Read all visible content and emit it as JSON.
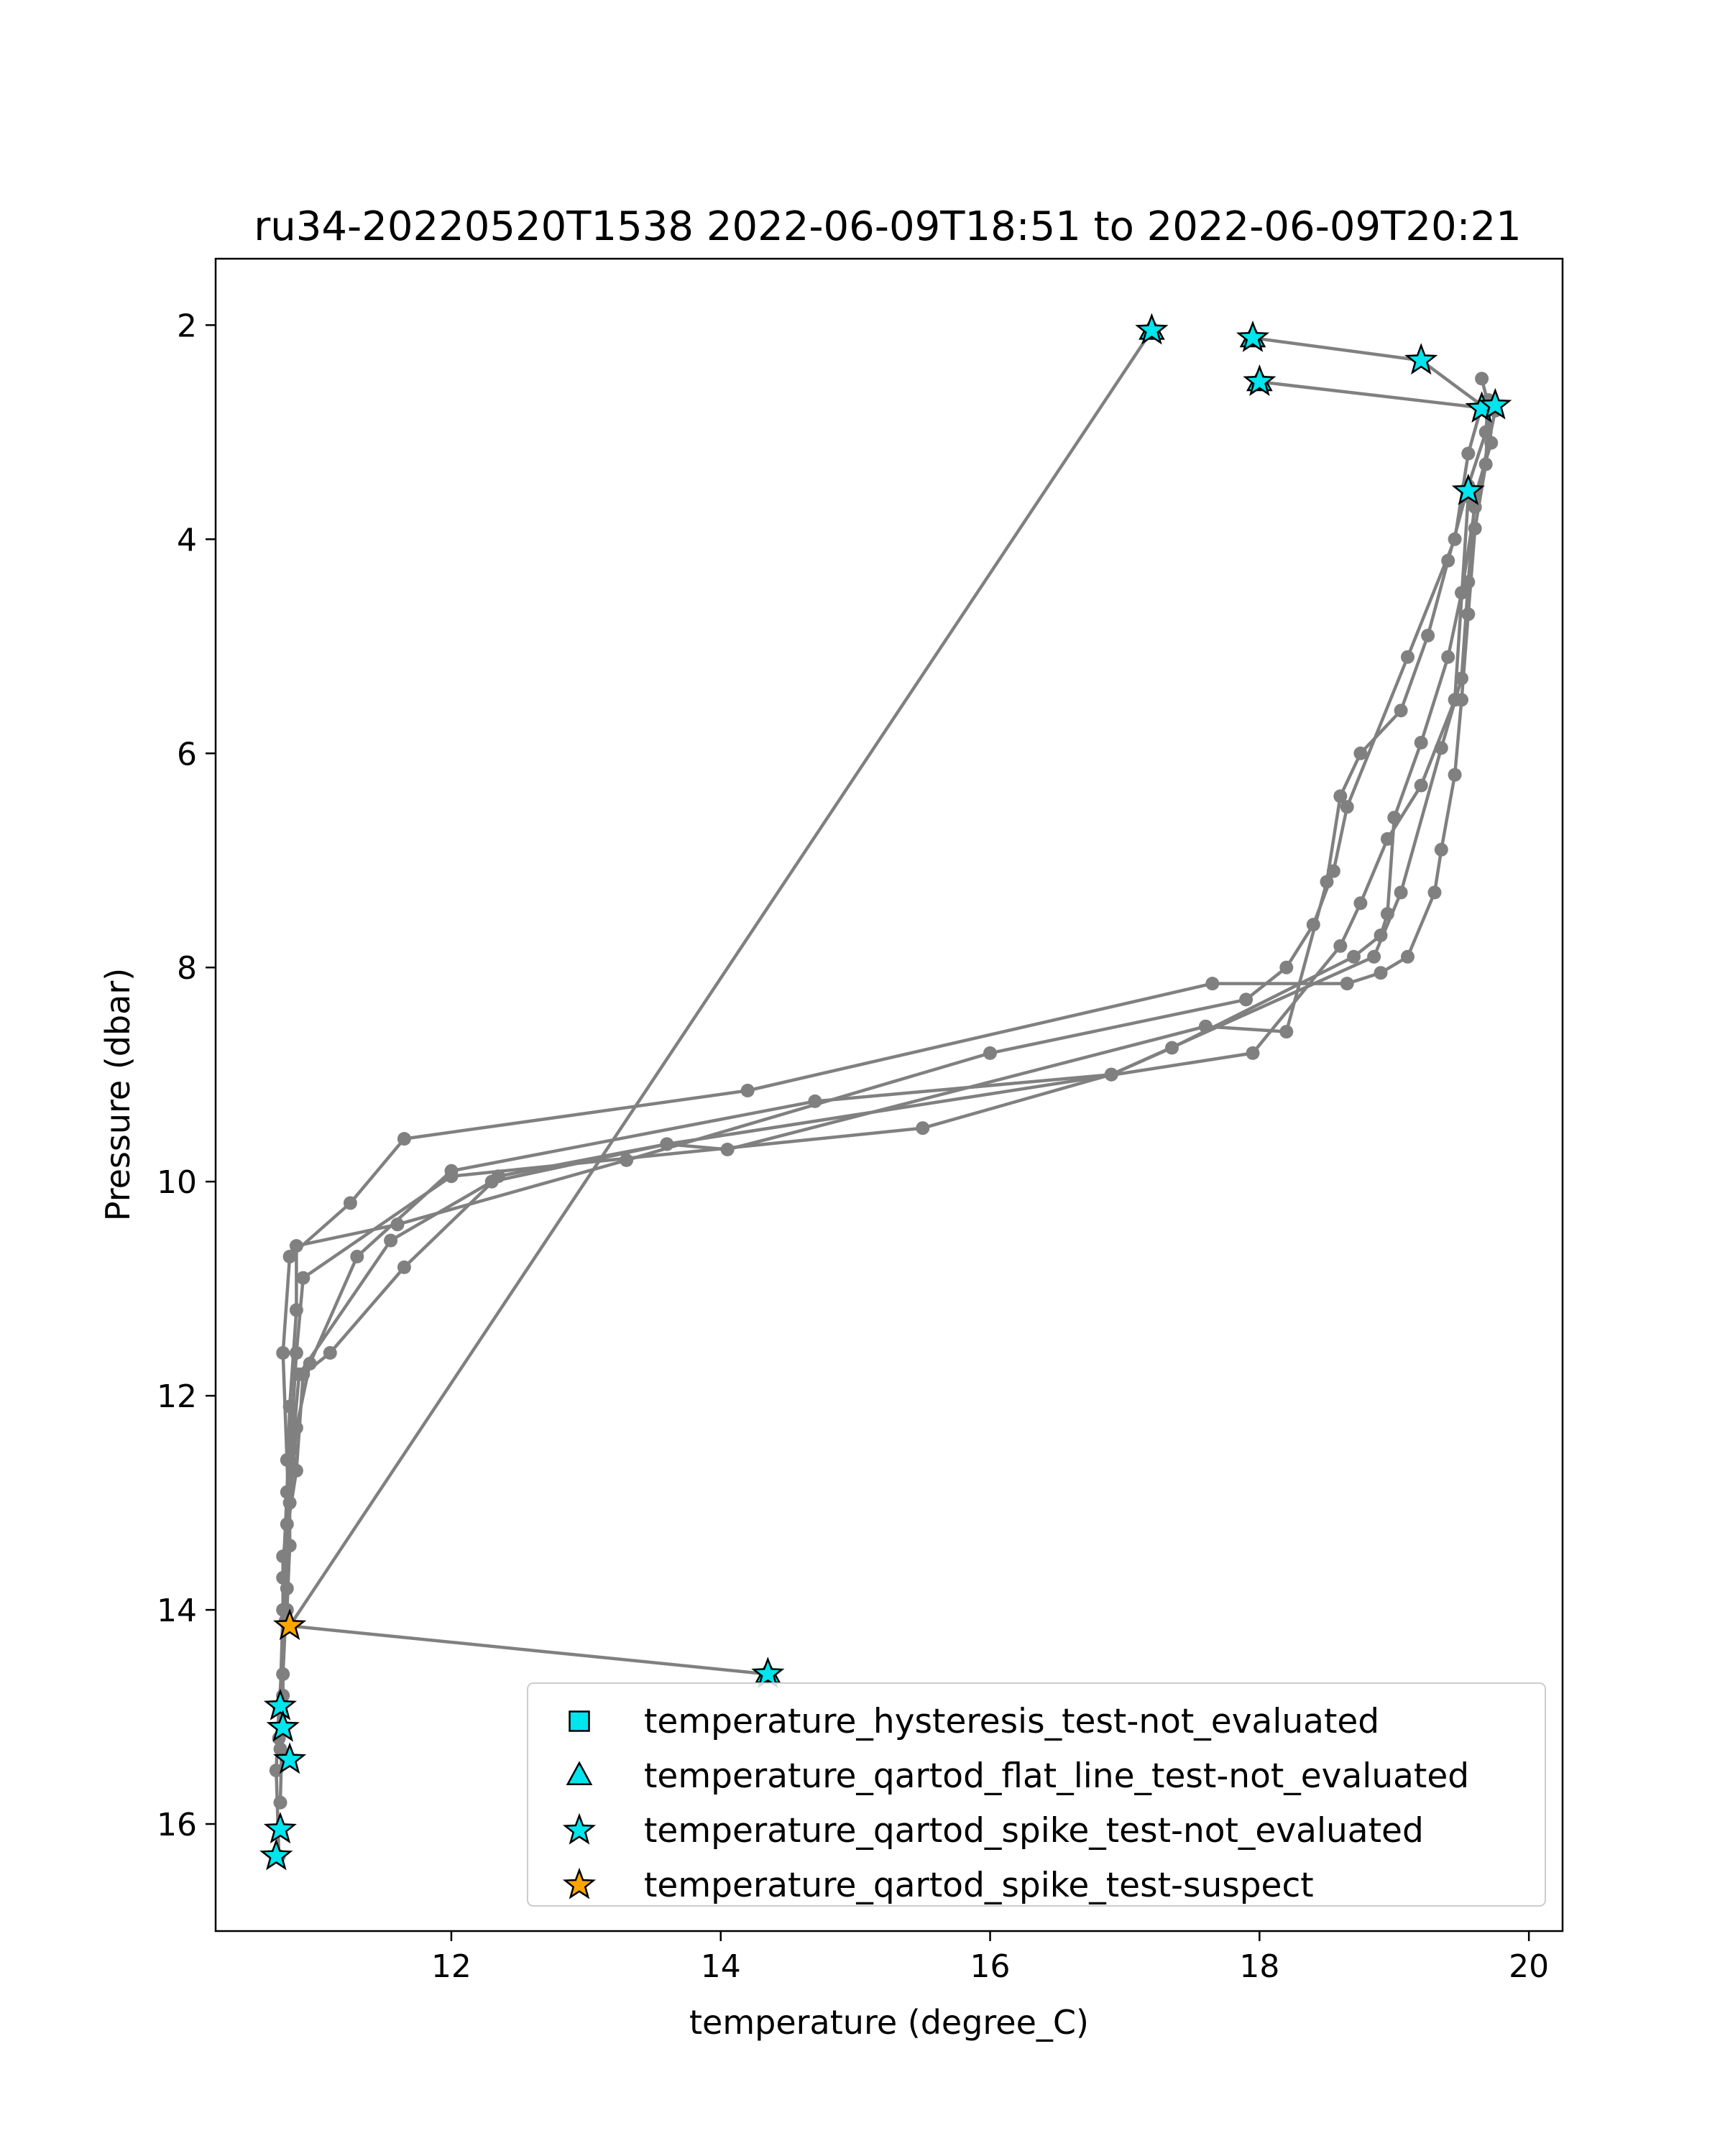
{
  "chart_data": {
    "type": "scatter",
    "title": "ru34-20220520T1538 2022-06-09T18:51 to 2022-06-09T20:21",
    "xlabel": "temperature (degree_C)",
    "ylabel": "Pressure (dbar)",
    "xlim": [
      10.25,
      20.25
    ],
    "ylim": [
      17.0,
      1.38
    ],
    "y_inverted": true,
    "x_ticks": [
      12,
      14,
      16,
      18,
      20
    ],
    "y_ticks": [
      2,
      4,
      6,
      8,
      10,
      12,
      14,
      16
    ],
    "grid": false,
    "legend_position": "lower-right",
    "profile_color": "#808080",
    "profiles": [
      {
        "x": [
          19.65,
          19.7,
          19.68,
          19.6,
          19.55,
          19.5,
          19.45,
          19.35,
          19.3,
          19.1,
          18.9,
          18.65,
          17.65,
          14.2,
          11.65,
          11.25,
          10.8,
          10.75,
          10.78,
          10.8,
          10.77,
          10.72,
          10.7,
          10.72
        ],
        "y": [
          2.5,
          2.75,
          3.3,
          3.9,
          4.7,
          5.5,
          6.2,
          6.9,
          7.3,
          7.9,
          8.05,
          8.15,
          8.15,
          9.15,
          9.6,
          10.2,
          10.7,
          11.6,
          12.6,
          13.4,
          14.1,
          14.9,
          15.5,
          16.3
        ]
      },
      {
        "x": [
          19.7,
          19.68,
          19.55,
          19.4,
          19.25,
          19.05,
          18.75,
          18.6,
          18.5,
          18.2,
          17.6,
          14.05,
          13.6,
          12.35,
          11.65,
          11.1,
          10.9,
          10.85,
          10.75,
          10.75,
          10.73
        ],
        "y": [
          2.7,
          3.0,
          3.5,
          4.2,
          4.9,
          5.6,
          6.0,
          6.4,
          7.2,
          8.6,
          8.55,
          9.7,
          9.65,
          9.95,
          10.8,
          11.6,
          11.8,
          12.7,
          13.5,
          14.8,
          15.8
        ]
      },
      {
        "x": [
          19.75,
          19.6,
          19.5,
          19.4,
          19.2,
          19.0,
          18.95,
          18.9,
          18.7,
          17.35,
          16.9,
          14.7,
          12.0,
          11.3,
          10.95,
          10.85,
          10.8,
          10.78,
          10.75,
          10.73
        ],
        "y": [
          2.8,
          3.7,
          4.5,
          5.1,
          5.9,
          6.6,
          7.5,
          7.7,
          7.9,
          8.75,
          9.0,
          9.25,
          9.9,
          10.7,
          11.7,
          12.3,
          13.0,
          13.8,
          14.6,
          15.3
        ]
      },
      {
        "x": [
          19.55,
          19.45,
          19.2,
          18.95,
          18.75,
          18.6,
          17.95,
          13.6,
          12.3,
          11.55,
          10.87,
          10.82,
          10.78,
          10.75,
          10.72
        ],
        "y": [
          3.6,
          5.5,
          6.3,
          6.8,
          7.4,
          7.8,
          8.8,
          9.65,
          10.0,
          10.55,
          11.8,
          12.5,
          13.2,
          14.0,
          15.2
        ]
      },
      {
        "x": [
          17.95,
          19.2,
          19.65,
          19.55,
          19.45,
          19.1,
          18.65,
          18.55,
          18.4,
          18.2,
          17.9,
          16.0,
          13.3,
          11.6,
          10.85,
          10.85,
          10.8,
          10.78,
          10.75
        ],
        "y": [
          2.12,
          2.33,
          2.75,
          3.2,
          4.0,
          5.1,
          6.5,
          7.1,
          7.6,
          8.0,
          8.3,
          8.8,
          9.8,
          10.4,
          10.6,
          11.2,
          12.1,
          12.9,
          13.7
        ]
      },
      {
        "x": [
          18.0,
          19.7,
          19.72,
          19.6,
          19.55,
          19.5,
          19.35,
          19.05,
          18.85,
          16.9,
          15.5,
          12.0,
          10.9,
          10.85,
          10.8,
          10.8,
          10.78
        ],
        "y": [
          2.53,
          2.78,
          3.1,
          3.6,
          4.4,
          5.3,
          5.95,
          7.3,
          7.9,
          9.0,
          9.5,
          9.95,
          10.9,
          11.6,
          12.6,
          13.4,
          14.0
        ]
      },
      {
        "x": [
          17.2,
          10.8,
          14.35
        ],
        "y": [
          2.05,
          14.15,
          14.6
        ]
      }
    ],
    "series": [
      {
        "name": "temperature_hysteresis_test-not_evaluated",
        "marker": "square",
        "color": "#00e5ee",
        "points": []
      },
      {
        "name": "temperature_qartod_flat_line_test-not_evaluated",
        "marker": "triangle",
        "color": "#00e5ee",
        "points": [
          [
            17.2,
            2.05
          ],
          [
            17.95,
            2.12
          ],
          [
            18.0,
            2.53
          ],
          [
            14.35,
            14.6
          ]
        ]
      },
      {
        "name": "temperature_qartod_spike_test-not_evaluated",
        "marker": "star",
        "color": "#00e5ee",
        "points": [
          [
            17.2,
            2.05
          ],
          [
            17.95,
            2.12
          ],
          [
            19.2,
            2.33
          ],
          [
            18.0,
            2.53
          ],
          [
            19.65,
            2.78
          ],
          [
            19.75,
            2.75
          ],
          [
            19.55,
            3.55
          ],
          [
            14.35,
            14.6
          ],
          [
            10.73,
            14.9
          ],
          [
            10.75,
            15.1
          ],
          [
            10.8,
            15.4
          ],
          [
            10.73,
            16.05
          ],
          [
            10.7,
            16.3
          ]
        ]
      },
      {
        "name": "temperature_qartod_spike_test-suspect",
        "marker": "star",
        "color": "#ffa500",
        "points": [
          [
            10.8,
            14.15
          ]
        ]
      }
    ]
  }
}
